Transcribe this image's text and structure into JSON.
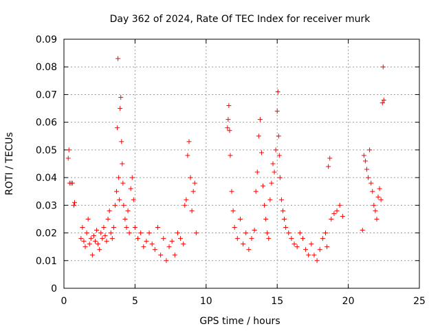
{
  "chart_data": {
    "type": "scatter",
    "title": "Day 362 of 2024, Rate Of TEC Index for receiver murk",
    "xlabel": "GPS time / hours",
    "ylabel": "ROTI / TECUs",
    "xlim": [
      0,
      25
    ],
    "ylim": [
      0,
      0.09
    ],
    "x_ticks": [
      "0",
      "5",
      "10",
      "15",
      "20",
      "25"
    ],
    "y_ticks": [
      "0",
      "0.01",
      "0.02",
      "0.03",
      "0.04",
      "0.05",
      "0.06",
      "0.07",
      "0.08",
      "0.09"
    ],
    "grid": true,
    "marker": "+",
    "color": "#ff0000",
    "series": [
      {
        "x": [
          0.3,
          0.35,
          0.4,
          0.5,
          0.6,
          0.7,
          0.75,
          1.2,
          1.3,
          1.4,
          1.5,
          1.6,
          1.7,
          1.8,
          1.9,
          2.0,
          2.1,
          2.2,
          2.3,
          2.4,
          2.5,
          2.6,
          2.7,
          2.8,
          2.9,
          3.0,
          3.1,
          3.2,
          3.3,
          3.4,
          3.5,
          3.6,
          3.7,
          3.75,
          3.8,
          3.85,
          3.9,
          3.95,
          4.0,
          4.05,
          4.1,
          4.15,
          4.2,
          4.3,
          4.4,
          4.5,
          4.6,
          4.7,
          4.8,
          4.9,
          5.0,
          5.2,
          5.4,
          5.6,
          5.8,
          6.0,
          6.2,
          6.4,
          6.6,
          6.8,
          7.0,
          7.2,
          7.4,
          7.6,
          7.8,
          8.0,
          8.2,
          8.4,
          8.5,
          8.6,
          8.7,
          8.8,
          8.9,
          9.0,
          9.1,
          9.2,
          9.3,
          11.5,
          11.55,
          11.6,
          11.65,
          11.7,
          11.8,
          11.9,
          12.0,
          12.2,
          12.4,
          12.6,
          12.8,
          13.0,
          13.2,
          13.4,
          13.5,
          13.6,
          13.7,
          13.8,
          13.9,
          14.0,
          14.1,
          14.2,
          14.3,
          14.4,
          14.5,
          14.6,
          14.7,
          14.8,
          14.9,
          15.0,
          15.05,
          15.1,
          15.15,
          15.2,
          15.3,
          15.4,
          15.5,
          15.6,
          15.8,
          16.0,
          16.2,
          16.4,
          16.6,
          16.8,
          17.0,
          17.2,
          17.4,
          17.6,
          17.8,
          18.0,
          18.2,
          18.4,
          18.5,
          18.6,
          18.7,
          18.8,
          19.0,
          19.2,
          19.4,
          19.6,
          21.0,
          21.1,
          21.2,
          21.3,
          21.4,
          21.5,
          21.6,
          21.7,
          21.8,
          21.9,
          22.0,
          22.1,
          22.2,
          22.3,
          22.4,
          22.45,
          22.5
        ],
        "y": [
          0.047,
          0.05,
          0.038,
          0.038,
          0.038,
          0.03,
          0.031,
          0.018,
          0.022,
          0.017,
          0.015,
          0.02,
          0.025,
          0.016,
          0.018,
          0.012,
          0.019,
          0.017,
          0.021,
          0.016,
          0.014,
          0.02,
          0.018,
          0.022,
          0.019,
          0.017,
          0.025,
          0.028,
          0.02,
          0.018,
          0.022,
          0.03,
          0.035,
          0.058,
          0.083,
          0.04,
          0.032,
          0.065,
          0.069,
          0.053,
          0.045,
          0.038,
          0.03,
          0.025,
          0.022,
          0.028,
          0.02,
          0.036,
          0.04,
          0.032,
          0.022,
          0.018,
          0.02,
          0.015,
          0.017,
          0.02,
          0.016,
          0.014,
          0.022,
          0.012,
          0.018,
          0.01,
          0.015,
          0.017,
          0.012,
          0.02,
          0.018,
          0.016,
          0.03,
          0.032,
          0.048,
          0.053,
          0.04,
          0.028,
          0.035,
          0.038,
          0.02,
          0.058,
          0.061,
          0.066,
          0.057,
          0.048,
          0.035,
          0.028,
          0.022,
          0.018,
          0.025,
          0.016,
          0.02,
          0.014,
          0.018,
          0.021,
          0.035,
          0.042,
          0.055,
          0.061,
          0.049,
          0.037,
          0.03,
          0.025,
          0.02,
          0.018,
          0.032,
          0.038,
          0.045,
          0.042,
          0.05,
          0.064,
          0.071,
          0.055,
          0.048,
          0.04,
          0.032,
          0.028,
          0.025,
          0.022,
          0.02,
          0.018,
          0.016,
          0.015,
          0.02,
          0.018,
          0.014,
          0.012,
          0.016,
          0.012,
          0.01,
          0.014,
          0.018,
          0.02,
          0.015,
          0.044,
          0.047,
          0.025,
          0.027,
          0.028,
          0.03,
          0.026,
          0.021,
          0.048,
          0.046,
          0.043,
          0.04,
          0.05,
          0.038,
          0.035,
          0.03,
          0.028,
          0.025,
          0.033,
          0.036,
          0.032,
          0.067,
          0.08,
          0.068
        ]
      }
    ]
  }
}
